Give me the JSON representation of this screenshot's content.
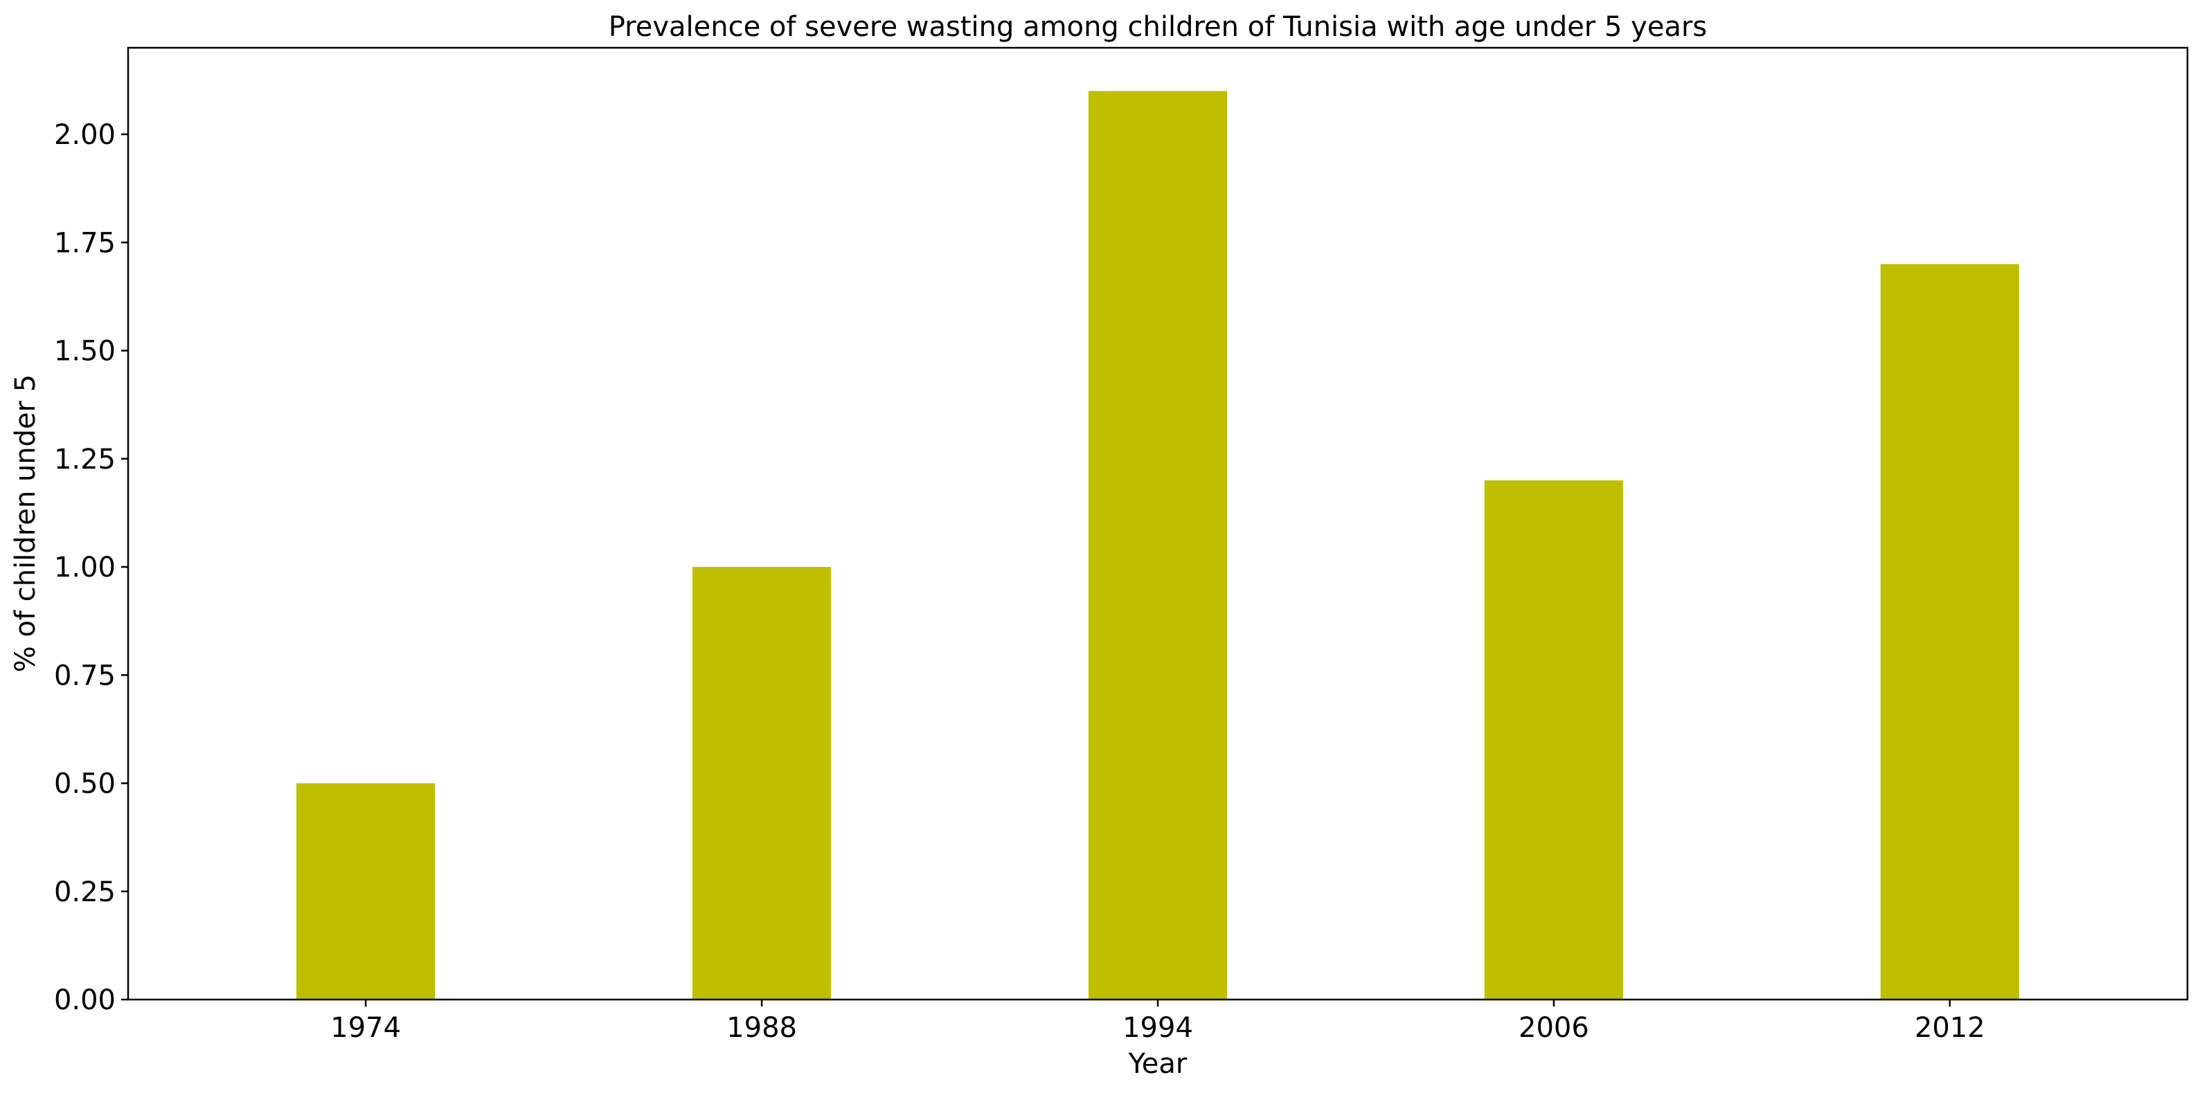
{
  "chart_data": {
    "type": "bar",
    "title": "Prevalence of severe wasting among children of Tunisia with age under 5 years",
    "xlabel": "Year",
    "ylabel": "% of children under 5",
    "categories": [
      "1974",
      "1988",
      "1994",
      "2006",
      "2012"
    ],
    "values": [
      0.5,
      1.0,
      2.1,
      1.2,
      1.7
    ],
    "ylim": [
      0,
      2.2
    ],
    "yticks": [
      "0.00",
      "0.25",
      "0.50",
      "0.75",
      "1.00",
      "1.25",
      "1.50",
      "1.75",
      "2.00"
    ],
    "bar_color": "#bfbf00",
    "grid": false,
    "legend": false
  }
}
